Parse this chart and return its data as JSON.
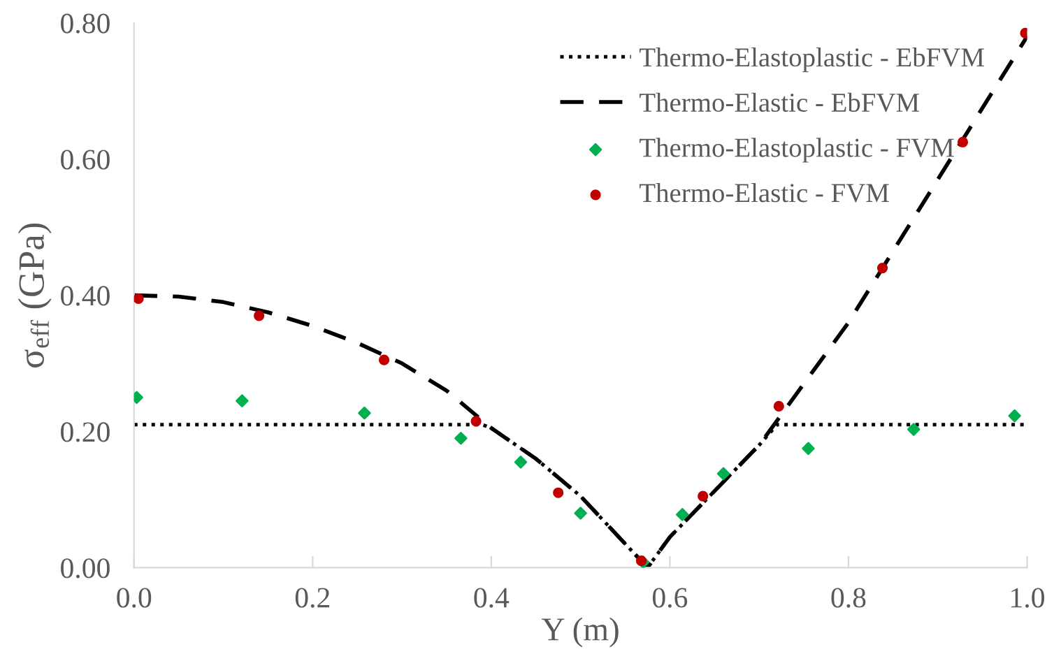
{
  "chart_data": {
    "type": "line",
    "xlabel": "Y (m)",
    "ylabel": "σ$_{eff}$ (GPa)",
    "xlim": [
      0,
      1.0
    ],
    "ylim": [
      0,
      0.8
    ],
    "xticks": [
      {
        "value": 0,
        "label": "0.0"
      },
      {
        "value": 0.2,
        "label": "0.2"
      },
      {
        "value": 0.4,
        "label": "0.4"
      },
      {
        "value": 0.6,
        "label": "0.6"
      },
      {
        "value": 0.8,
        "label": "0.8"
      },
      {
        "value": 1.0,
        "label": "1.0"
      }
    ],
    "yticks": [
      {
        "value": 0,
        "label": "0.00"
      },
      {
        "value": 0.2,
        "label": "0.20"
      },
      {
        "value": 0.4,
        "label": "0.40"
      },
      {
        "value": 0.6,
        "label": "0.60"
      },
      {
        "value": 0.8,
        "label": "0.80"
      }
    ],
    "grid": false,
    "legend": "top right",
    "series": [
      {
        "name": "Thermo-Elastoplastic - EbFVM",
        "line_style": "dotted",
        "marker": "none",
        "color": "#000000",
        "x": [
          0,
          0.39,
          0.4,
          0.45,
          0.5,
          0.55,
          0.575,
          0.6,
          0.7,
          0.72,
          1.0
        ],
        "values": [
          0.21,
          0.21,
          0.205,
          0.16,
          0.105,
          0.035,
          0.0,
          0.045,
          0.18,
          0.21,
          0.21
        ]
      },
      {
        "name": "Thermo-Elastic - EbFVM",
        "line_style": "dashed",
        "marker": "none",
        "color": "#000000",
        "x": [
          0,
          0.05,
          0.1,
          0.15,
          0.2,
          0.25,
          0.3,
          0.35,
          0.4,
          0.45,
          0.5,
          0.55,
          0.575,
          0.6,
          0.7,
          0.8,
          0.9,
          1.0
        ],
        "values": [
          0.4,
          0.398,
          0.39,
          0.375,
          0.355,
          0.33,
          0.3,
          0.26,
          0.205,
          0.16,
          0.105,
          0.035,
          0.0,
          0.045,
          0.18,
          0.36,
          0.57,
          0.78
        ]
      },
      {
        "name": "Thermo-Elastoplastic - FVM",
        "type": "scatter",
        "marker": "diamond",
        "color": "#00b050",
        "x": [
          0.003,
          0.121,
          0.258,
          0.366,
          0.433,
          0.5,
          0.57,
          0.614,
          0.66,
          0.755,
          0.873,
          0.986
        ],
        "values": [
          0.25,
          0.245,
          0.227,
          0.19,
          0.155,
          0.08,
          0.008,
          0.078,
          0.138,
          0.175,
          0.203,
          0.223
        ]
      },
      {
        "name": "Thermo-Elastic - FVM",
        "type": "scatter",
        "marker": "circle",
        "color": "#c00000",
        "x": [
          0.005,
          0.14,
          0.28,
          0.383,
          0.475,
          0.568,
          0.637,
          0.722,
          0.838,
          0.928,
          0.998
        ],
        "values": [
          0.395,
          0.37,
          0.305,
          0.215,
          0.11,
          0.01,
          0.105,
          0.237,
          0.44,
          0.625,
          0.785
        ]
      }
    ]
  }
}
